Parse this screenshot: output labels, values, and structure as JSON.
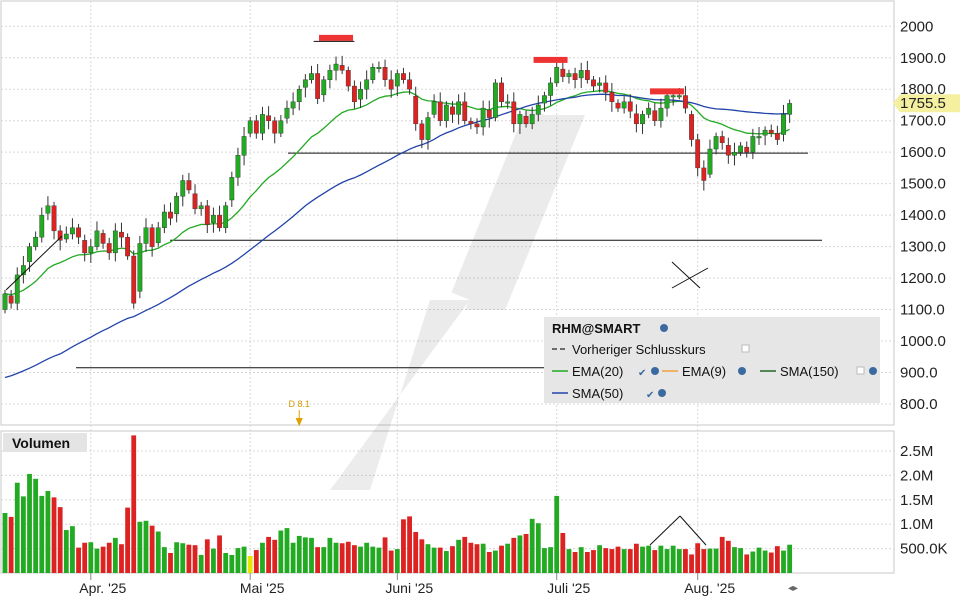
{
  "chart_data": {
    "type": "candlestick",
    "symbol": "RHM@SMART",
    "price_axis": {
      "ticks": [
        800,
        900,
        1000,
        1100,
        1200,
        1300,
        1400,
        1500,
        1600,
        1700,
        1800,
        1900,
        2000
      ],
      "tick_labels": [
        "800.0",
        "900.0",
        "1000.0",
        "1100.0",
        "1200.0",
        "1300.0",
        "1400.0",
        "1500.0",
        "1600.0",
        "1700.0",
        "1800.0",
        "1900.0",
        "2000"
      ],
      "range": [
        730,
        2030
      ]
    },
    "volume_axis": {
      "ticks": [
        0.5,
        1.0,
        1.5,
        2.0,
        2.5
      ],
      "tick_labels": [
        "500.0K",
        "1.0M",
        "1.5M",
        "2.0M",
        "2.5M"
      ],
      "range": [
        0,
        2.85
      ]
    },
    "months": [
      "Apr. '25",
      "Mai '25",
      "Juni '25",
      "Juli '25",
      "Aug. '25"
    ],
    "month_start_index": [
      14,
      40,
      64,
      90,
      113
    ],
    "last_price_label": "1755.5",
    "last_price": 1755.5,
    "event_marker": {
      "label": "D 8.1",
      "index": 48
    },
    "volume_title": "Volumen",
    "legend": {
      "title": "RHM@SMART",
      "prev_close": "Vorheriger Schlusskurs",
      "ema20": "EMA(20)",
      "ema9": "EMA(9)",
      "sma150": "SMA(150)",
      "sma50": "SMA(50)"
    },
    "colors": {
      "up": "#22aa22",
      "down": "#dd2222",
      "ema20": "#22aa22",
      "sma50": "#2244aa",
      "ema9": "#f0a040",
      "sma150": "#226622",
      "highlight": "#e6e600",
      "marker": "#ee3333"
    },
    "horizontal_lines": [
      {
        "y": 1597
      },
      {
        "y": 1320
      },
      {
        "y": 915
      }
    ],
    "close": [
      1150,
      1120,
      1210,
      1240,
      1300,
      1330,
      1400,
      1430,
      1350,
      1320,
      1340,
      1360,
      1330,
      1280,
      1300,
      1350,
      1310,
      1280,
      1350,
      1330,
      1270,
      1120,
      1310,
      1360,
      1300,
      1360,
      1410,
      1390,
      1460,
      1510,
      1480,
      1420,
      1430,
      1370,
      1400,
      1360,
      1430,
      1520,
      1590,
      1650,
      1700,
      1660,
      1720,
      1700,
      1660,
      1700,
      1740,
      1760,
      1800,
      1830,
      1850,
      1770,
      1830,
      1860,
      1880,
      1860,
      1810,
      1760,
      1800,
      1830,
      1870,
      1870,
      1830,
      1800,
      1850,
      1830,
      1800,
      1690,
      1640,
      1710,
      1760,
      1700,
      1750,
      1720,
      1760,
      1700,
      1690,
      1680,
      1740,
      1710,
      1820,
      1760,
      1760,
      1690,
      1720,
      1690,
      1720,
      1750,
      1780,
      1820,
      1870,
      1840,
      1850,
      1830,
      1860,
      1830,
      1810,
      1820,
      1790,
      1760,
      1740,
      1760,
      1730,
      1690,
      1720,
      1740,
      1700,
      1740,
      1780,
      1780,
      1780,
      1740,
      1640,
      1550,
      1510,
      1610,
      1650,
      1630,
      1590,
      1600,
      1620,
      1600,
      1650,
      1650,
      1670,
      1660,
      1640,
      1720,
      1755
    ],
    "volume": [
      1.23,
      1.15,
      1.85,
      1.57,
      2.03,
      1.93,
      1.58,
      1.68,
      1.55,
      1.35,
      0.88,
      0.96,
      0.52,
      0.62,
      0.63,
      0.5,
      0.54,
      0.62,
      0.72,
      0.59,
      1.34,
      2.82,
      1.05,
      1.07,
      0.97,
      0.85,
      0.53,
      0.41,
      0.63,
      0.61,
      0.58,
      0.57,
      0.37,
      0.69,
      0.5,
      0.77,
      0.41,
      0.37,
      0.51,
      0.54,
      0.35,
      0.47,
      0.62,
      0.74,
      0.68,
      0.87,
      0.92,
      0.62,
      0.76,
      0.73,
      0.72,
      0.53,
      0.53,
      0.72,
      0.62,
      0.61,
      0.64,
      0.57,
      0.54,
      0.62,
      0.54,
      0.52,
      0.73,
      0.46,
      0.49,
      1.1,
      1.16,
      0.84,
      0.69,
      0.59,
      0.52,
      0.52,
      0.45,
      0.55,
      0.68,
      0.74,
      0.62,
      0.59,
      0.6,
      0.43,
      0.46,
      0.56,
      0.6,
      0.72,
      0.77,
      0.8,
      1.11,
      1.02,
      0.51,
      0.53,
      1.58,
      0.82,
      0.49,
      0.43,
      0.53,
      0.43,
      0.47,
      0.57,
      0.51,
      0.49,
      0.54,
      0.49,
      0.49,
      0.6,
      0.54,
      0.56,
      0.47,
      0.56,
      0.49,
      0.56,
      0.49,
      0.49,
      0.38,
      0.61,
      0.49,
      0.5,
      0.5,
      0.74,
      0.66,
      0.53,
      0.51,
      0.38,
      0.44,
      0.52,
      0.46,
      0.42,
      0.55,
      0.46,
      0.58
    ]
  }
}
